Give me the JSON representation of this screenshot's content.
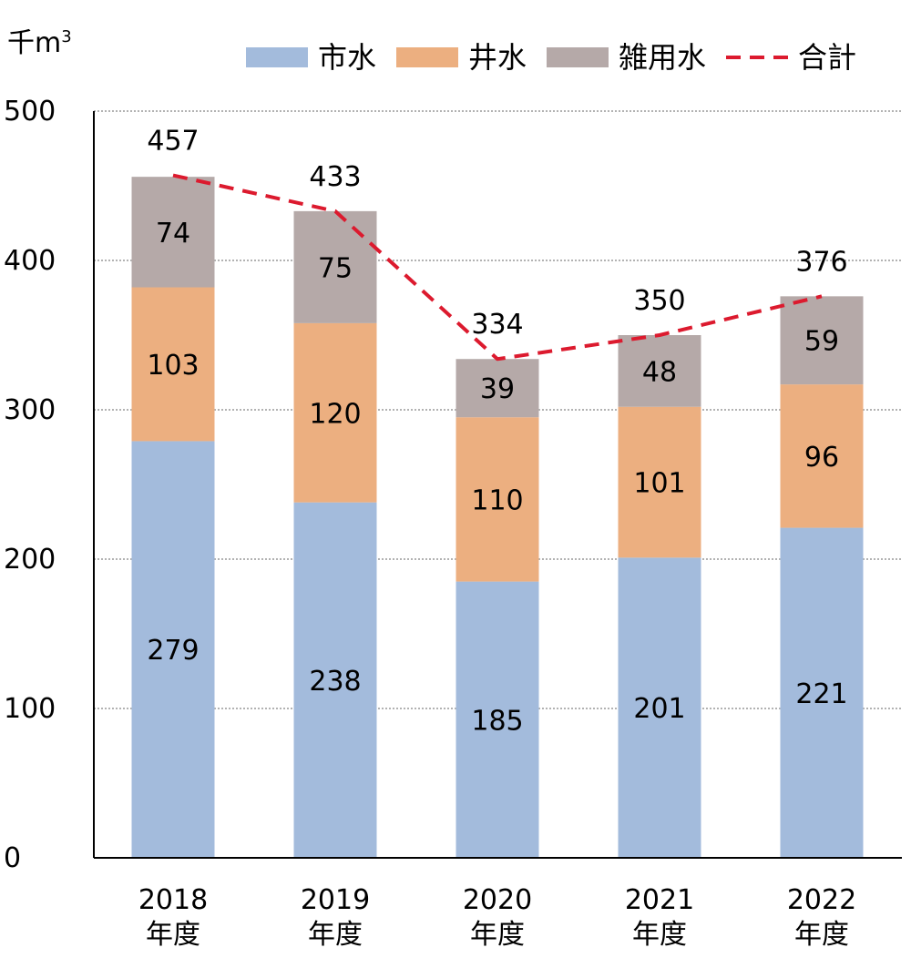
{
  "chart_data": {
    "type": "bar",
    "stacked": true,
    "unit": "千m",
    "unit_superscript": "3",
    "categories": [
      "2018\n年度",
      "2019\n年度",
      "2020\n年度",
      "2021\n年度",
      "2022\n年度"
    ],
    "series": [
      {
        "name": "市水",
        "values": [
          279,
          238,
          185,
          201,
          221
        ],
        "color": "#a3bbdc"
      },
      {
        "name": "井水",
        "values": [
          103,
          120,
          110,
          101,
          96
        ],
        "color": "#ecaf80"
      },
      {
        "name": "雑用水",
        "values": [
          74,
          75,
          39,
          48,
          59
        ],
        "color": "#b5a9a8"
      }
    ],
    "total": {
      "name": "合計",
      "type": "line",
      "style": "dashed",
      "color": "#dc1a2e",
      "values": [
        457,
        433,
        334,
        350,
        376
      ]
    },
    "ylim": [
      0,
      500
    ],
    "yticks": [
      0,
      100,
      200,
      300,
      400,
      500
    ],
    "grid": true,
    "legend": "top"
  }
}
